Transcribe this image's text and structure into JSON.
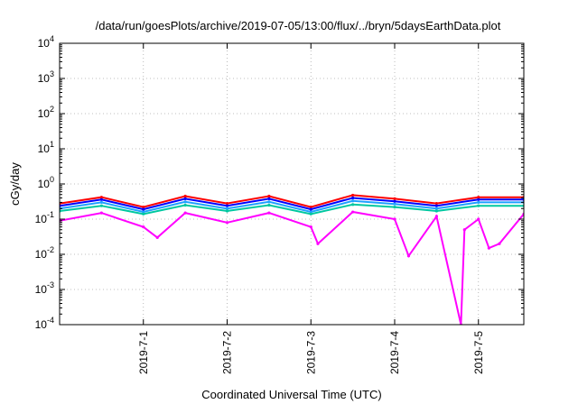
{
  "chart_data": {
    "type": "line",
    "title": "/data/run/goesPlots/archive/2019-07-05/13:00/flux/../bryn/5daysEarthData.plot",
    "xlabel": "Coordinated Universal Time (UTC)",
    "ylabel": "cGy/day",
    "yscale": "log",
    "ylim": [
      0.0001,
      10000
    ],
    "ytick_labels": [
      {
        "base": "10",
        "exp": "-4"
      },
      {
        "base": "10",
        "exp": "-3"
      },
      {
        "base": "10",
        "exp": "-2"
      },
      {
        "base": "10",
        "exp": "-1"
      },
      {
        "base": "10",
        "exp": "0"
      },
      {
        "base": "10",
        "exp": "1"
      },
      {
        "base": "10",
        "exp": "2"
      },
      {
        "base": "10",
        "exp": "3"
      },
      {
        "base": "10",
        "exp": "4"
      }
    ],
    "xlim": [
      "2019-06-30T00:00",
      "2019-07-05T13:00"
    ],
    "xtick_labels": [
      "2019-7-1",
      "2019-7-2",
      "2019-7-3",
      "2019-7-4",
      "2019-7-5"
    ],
    "grid": true,
    "legend": "none",
    "series": [
      {
        "color": "#ff0000",
        "x": [
          "2019-06-30T00:00",
          "2019-06-30T12:00",
          "2019-07-01T00:00",
          "2019-07-01T12:00",
          "2019-07-02T00:00",
          "2019-07-02T12:00",
          "2019-07-03T00:00",
          "2019-07-03T12:00",
          "2019-07-04T00:00",
          "2019-07-04T12:00",
          "2019-07-05T00:00",
          "2019-07-05T13:00"
        ],
        "y": [
          0.28,
          0.42,
          0.22,
          0.45,
          0.28,
          0.45,
          0.22,
          0.48,
          0.38,
          0.28,
          0.42,
          0.42
        ]
      },
      {
        "color": "#0000ff",
        "x": [
          "2019-06-30T00:00",
          "2019-06-30T12:00",
          "2019-07-01T00:00",
          "2019-07-01T12:00",
          "2019-07-02T00:00",
          "2019-07-02T12:00",
          "2019-07-03T00:00",
          "2019-07-03T12:00",
          "2019-07-04T00:00",
          "2019-07-04T12:00",
          "2019-07-05T00:00",
          "2019-07-05T13:00"
        ],
        "y": [
          0.24,
          0.36,
          0.19,
          0.38,
          0.24,
          0.38,
          0.19,
          0.4,
          0.32,
          0.24,
          0.36,
          0.36
        ]
      },
      {
        "color": "#1ea0ff",
        "x": [
          "2019-06-30T00:00",
          "2019-06-30T12:00",
          "2019-07-01T00:00",
          "2019-07-01T12:00",
          "2019-07-02T00:00",
          "2019-07-02T12:00",
          "2019-07-03T00:00",
          "2019-07-03T12:00",
          "2019-07-04T00:00",
          "2019-07-04T12:00",
          "2019-07-05T00:00",
          "2019-07-05T13:00"
        ],
        "y": [
          0.2,
          0.3,
          0.16,
          0.31,
          0.2,
          0.31,
          0.16,
          0.33,
          0.27,
          0.2,
          0.3,
          0.3
        ]
      },
      {
        "color": "#00c8a0",
        "x": [
          "2019-06-30T00:00",
          "2019-06-30T12:00",
          "2019-07-01T00:00",
          "2019-07-01T12:00",
          "2019-07-02T00:00",
          "2019-07-02T12:00",
          "2019-07-03T00:00",
          "2019-07-03T12:00",
          "2019-07-04T00:00",
          "2019-07-04T12:00",
          "2019-07-05T00:00",
          "2019-07-05T13:00"
        ],
        "y": [
          0.17,
          0.24,
          0.14,
          0.25,
          0.17,
          0.25,
          0.14,
          0.26,
          0.22,
          0.17,
          0.24,
          0.24
        ]
      },
      {
        "color": "#ff00ff",
        "x": [
          "2019-06-30T00:00",
          "2019-06-30T12:00",
          "2019-07-01T00:00",
          "2019-07-01T04:00",
          "2019-07-01T12:00",
          "2019-07-02T00:00",
          "2019-07-02T12:00",
          "2019-07-03T00:00",
          "2019-07-03T02:00",
          "2019-07-03T12:00",
          "2019-07-04T00:00",
          "2019-07-04T04:00",
          "2019-07-04T12:00",
          "2019-07-04T19:00",
          "2019-07-04T20:00",
          "2019-07-05T00:00",
          "2019-07-05T03:00",
          "2019-07-05T06:00",
          "2019-07-05T13:00"
        ],
        "y": [
          0.09,
          0.15,
          0.06,
          0.03,
          0.15,
          0.08,
          0.15,
          0.06,
          0.02,
          0.16,
          0.1,
          0.009,
          0.12,
          0.0001,
          0.05,
          0.1,
          0.015,
          0.02,
          0.14
        ]
      }
    ]
  }
}
